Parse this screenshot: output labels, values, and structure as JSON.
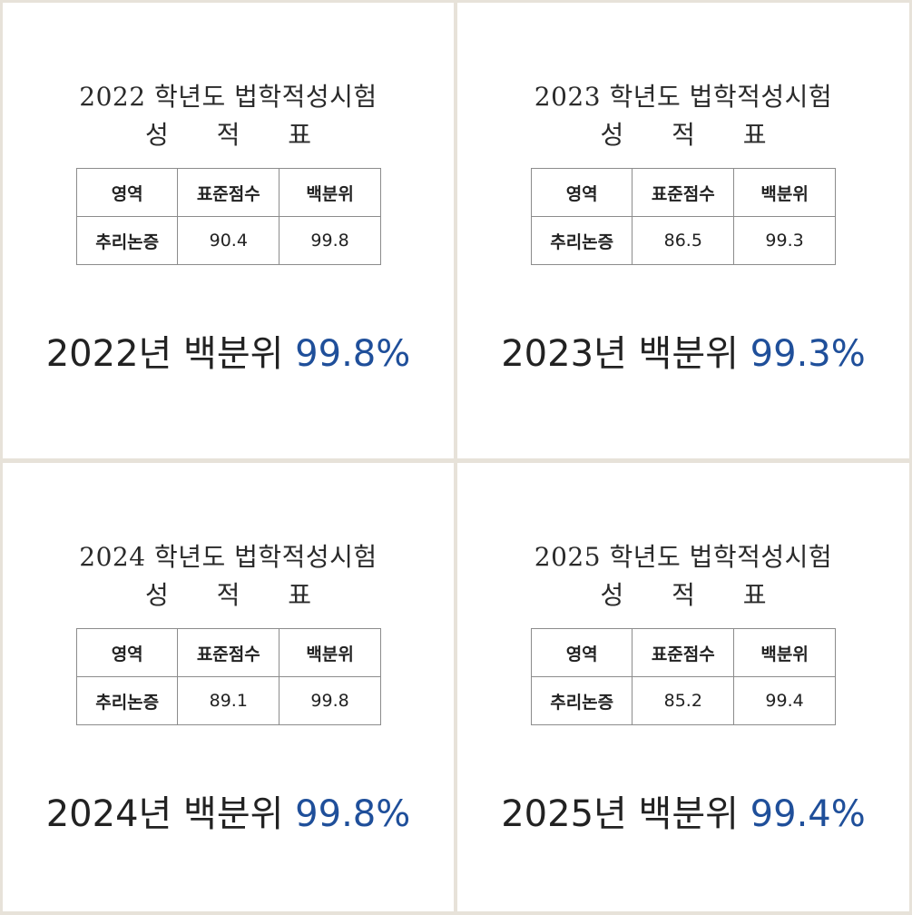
{
  "cards": [
    {
      "title": "2022 학년도 법학적성시험",
      "subtitle": "성 적 표",
      "headers": [
        "영역",
        "표준점수",
        "백분위"
      ],
      "row": {
        "area": "추리논증",
        "standard_score": "90.4",
        "percentile": "99.8"
      },
      "result_prefix": "2022년 백분위 ",
      "result_value": "99.8%"
    },
    {
      "title": "2023 학년도 법학적성시험",
      "subtitle": "성 적 표",
      "headers": [
        "영역",
        "표준점수",
        "백분위"
      ],
      "row": {
        "area": "추리논증",
        "standard_score": "86.5",
        "percentile": "99.3"
      },
      "result_prefix": "2023년 백분위 ",
      "result_value": "99.3%"
    },
    {
      "title": "2024 학년도 법학적성시험",
      "subtitle": "성 적 표",
      "headers": [
        "영역",
        "표준점수",
        "백분위"
      ],
      "row": {
        "area": "추리논증",
        "standard_score": "89.1",
        "percentile": "99.8"
      },
      "result_prefix": "2024년 백분위 ",
      "result_value": "99.8%"
    },
    {
      "title": "2025 학년도 법학적성시험",
      "subtitle": "성 적 표",
      "headers": [
        "영역",
        "표준점수",
        "백분위"
      ],
      "row": {
        "area": "추리논증",
        "standard_score": "85.2",
        "percentile": "99.4"
      },
      "result_prefix": "2025년 백분위 ",
      "result_value": "99.4%"
    }
  ],
  "colors": {
    "background": "#e7e2d9",
    "card": "#ffffff",
    "accent": "#1f4f9a",
    "text": "#222222",
    "table_border": "#8c8c8c"
  }
}
